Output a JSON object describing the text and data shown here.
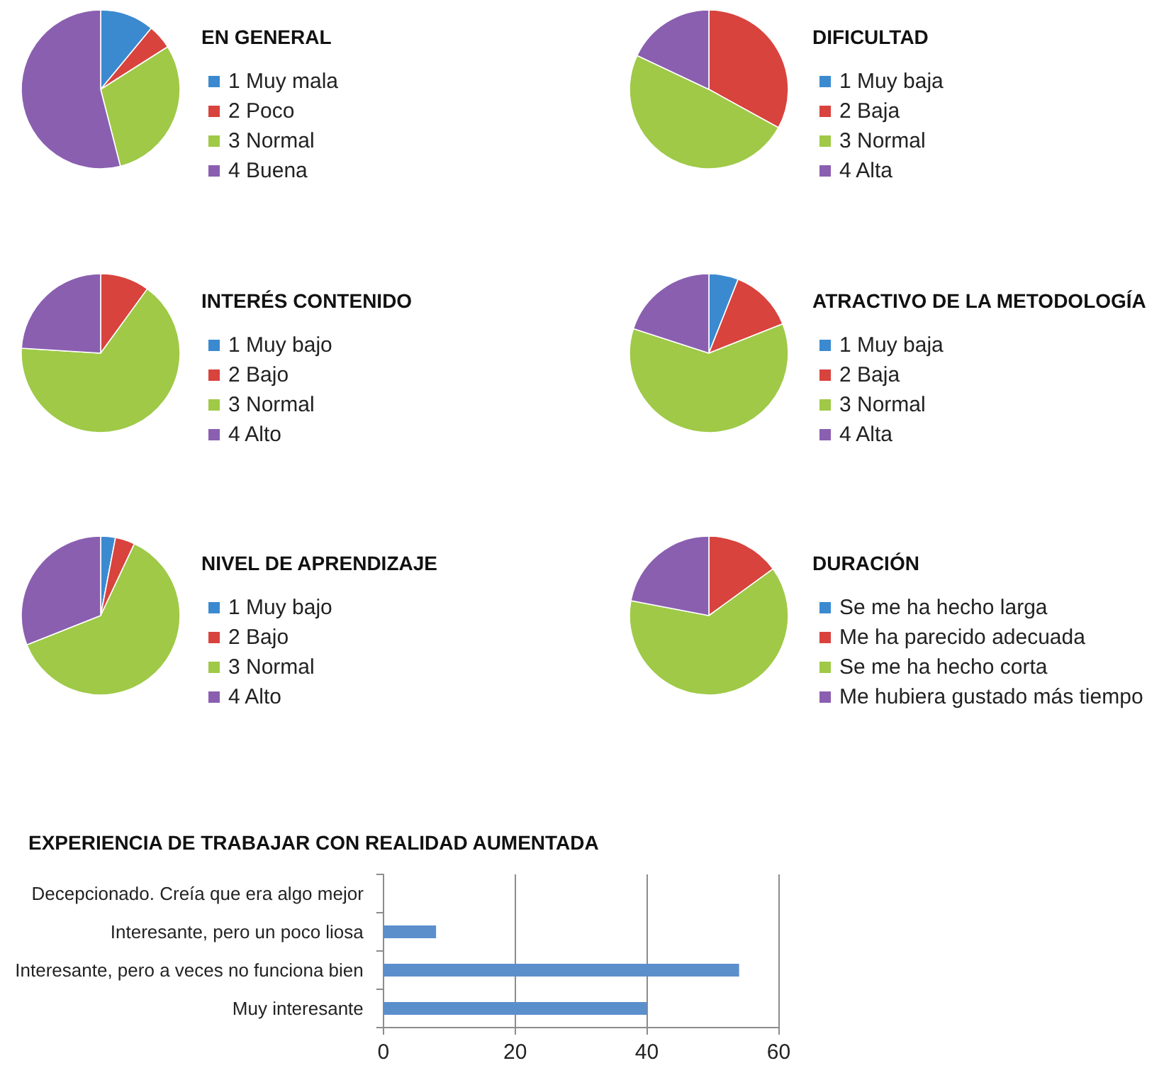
{
  "chart_data": [
    {
      "type": "pie",
      "title": "EN GENERAL",
      "categories": [
        "1 Muy mala",
        "2 Poco",
        "3 Normal",
        "4 Buena"
      ],
      "values": [
        11,
        5,
        30,
        54
      ],
      "colors": [
        "#3b8ad0",
        "#d8433d",
        "#9fc947",
        "#8a5fb0"
      ],
      "legend": "right"
    },
    {
      "type": "pie",
      "title": "DIFICULTAD",
      "categories": [
        "1 Muy baja",
        "2 Baja",
        "3 Normal",
        "4 Alta"
      ],
      "values": [
        0,
        33,
        49,
        18
      ],
      "colors": [
        "#3b8ad0",
        "#d8433d",
        "#9fc947",
        "#8a5fb0"
      ],
      "legend": "right"
    },
    {
      "type": "pie",
      "title": "INTERÉS CONTENIDO",
      "categories": [
        "1 Muy bajo",
        "2 Bajo",
        "3 Normal",
        "4 Alto"
      ],
      "values": [
        0,
        10,
        66,
        24
      ],
      "colors": [
        "#3b8ad0",
        "#d8433d",
        "#9fc947",
        "#8a5fb0"
      ],
      "legend": "right"
    },
    {
      "type": "pie",
      "title": "ATRACTIVO DE LA METODOLOGÍA",
      "categories": [
        "1 Muy baja",
        "2 Baja",
        "3 Normal",
        "4 Alta"
      ],
      "values": [
        6,
        13,
        61,
        20
      ],
      "colors": [
        "#3b8ad0",
        "#d8433d",
        "#9fc947",
        "#8a5fb0"
      ],
      "legend": "right"
    },
    {
      "type": "pie",
      "title": "NIVEL DE APRENDIZAJE",
      "categories": [
        "1 Muy bajo",
        "2 Bajo",
        "3 Normal",
        "4 Alto"
      ],
      "values": [
        3,
        4,
        62,
        31
      ],
      "colors": [
        "#3b8ad0",
        "#d8433d",
        "#9fc947",
        "#8a5fb0"
      ],
      "legend": "right"
    },
    {
      "type": "pie",
      "title": "DURACIÓN",
      "categories": [
        "Se me ha hecho larga",
        "Me ha parecido adecuada",
        "Se me ha hecho corta",
        "Me hubiera gustado más tiempo"
      ],
      "values": [
        0,
        15,
        63,
        22
      ],
      "colors": [
        "#3b8ad0",
        "#d8433d",
        "#9fc947",
        "#8a5fb0"
      ],
      "legend": "right"
    },
    {
      "type": "bar",
      "orientation": "horizontal",
      "title": "EXPERIENCIA DE TRABAJAR CON REALIDAD AUMENTADA",
      "categories": [
        "Decepcionado. Creía que era algo mejor",
        "Interesante, pero un poco liosa",
        "Interesante, pero a veces no funciona bien",
        "Muy interesante"
      ],
      "values": [
        0,
        8,
        54,
        40
      ],
      "color": "#5b8fcc",
      "xlim": [
        0,
        60
      ],
      "xticks": [
        0,
        20,
        40,
        60
      ],
      "grid": "x"
    }
  ]
}
